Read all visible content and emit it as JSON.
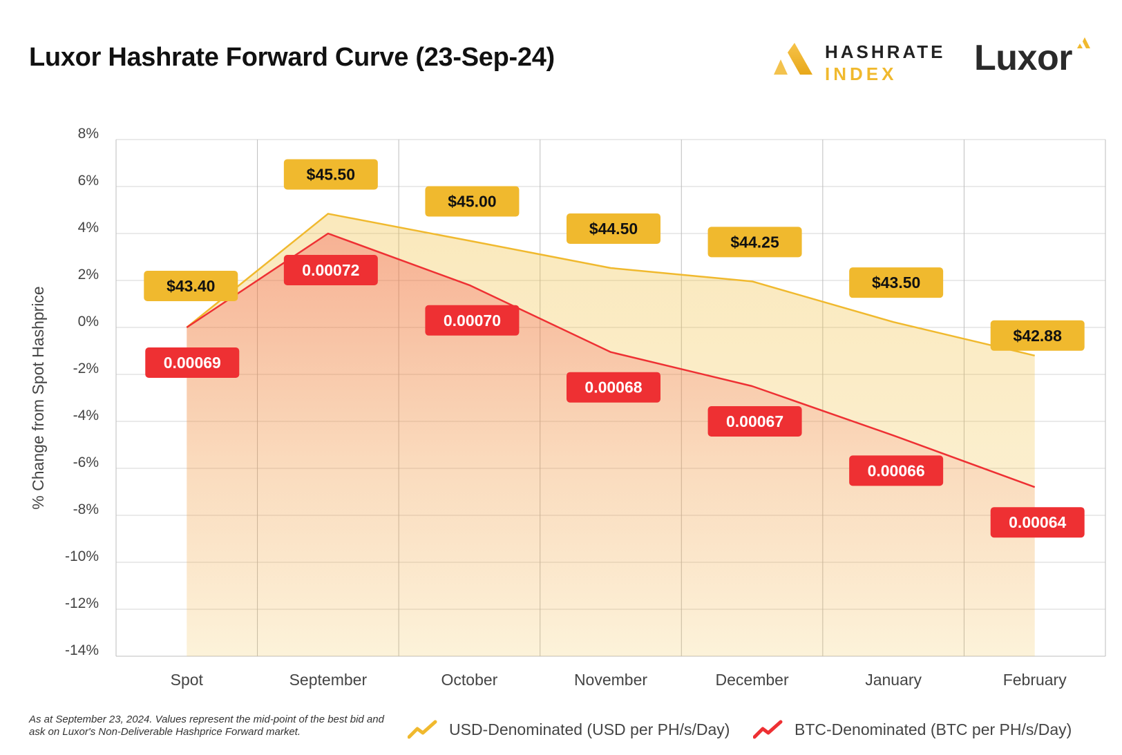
{
  "header": {
    "title": "Luxor Hashrate Forward Curve (23-Sep-24)",
    "logo_hashrate_line1": "HASHRATE",
    "logo_hashrate_line2": "INDEX",
    "logo_luxor": "Luxor"
  },
  "footer": {
    "note": "As at September 23, 2024. Values represent the mid-point of the best bid and ask on Luxor's Non-Deliverable Hashprice Forward market."
  },
  "colors": {
    "usd": "#f0b92e",
    "btc": "#ee3033",
    "grid": "#d6d6d6"
  },
  "chart_data": {
    "type": "area",
    "title": "Luxor Hashrate Forward Curve (23-Sep-24)",
    "ylabel": "% Change from Spot Hashprice",
    "xlabel": "",
    "categories": [
      "Spot",
      "September",
      "October",
      "November",
      "December",
      "January",
      "February"
    ],
    "ylim": [
      -14,
      8
    ],
    "yticks": [
      8,
      6,
      4,
      2,
      0,
      -2,
      -4,
      -6,
      -8,
      -10,
      -12,
      -14
    ],
    "ytick_labels": [
      "8%",
      "6%",
      "4%",
      "2%",
      "0%",
      "-2%",
      "-4%",
      "-6%",
      "-8%",
      "-10%",
      "-12%",
      "-14%"
    ],
    "grid": true,
    "legend_position": "bottom",
    "series": [
      {
        "name": "USD-Denominated (USD per PH/s/Day)",
        "color": "#f0b92e",
        "values": [
          0.0,
          4.84,
          3.69,
          2.53,
          1.96,
          0.23,
          -1.2
        ],
        "labels": [
          "$43.40",
          "$45.50",
          "$45.00",
          "$44.50",
          "$44.25",
          "$43.50",
          "$42.88"
        ]
      },
      {
        "name": "BTC-Denominated (BTC per PH/s/Day)",
        "color": "#ee3033",
        "values": [
          0.0,
          4.0,
          1.8,
          -1.05,
          -2.5,
          -4.6,
          -6.8
        ],
        "labels": [
          "0.00069",
          "0.00072",
          "0.00070",
          "0.00068",
          "0.00067",
          "0.00066",
          "0.00064"
        ]
      }
    ]
  }
}
